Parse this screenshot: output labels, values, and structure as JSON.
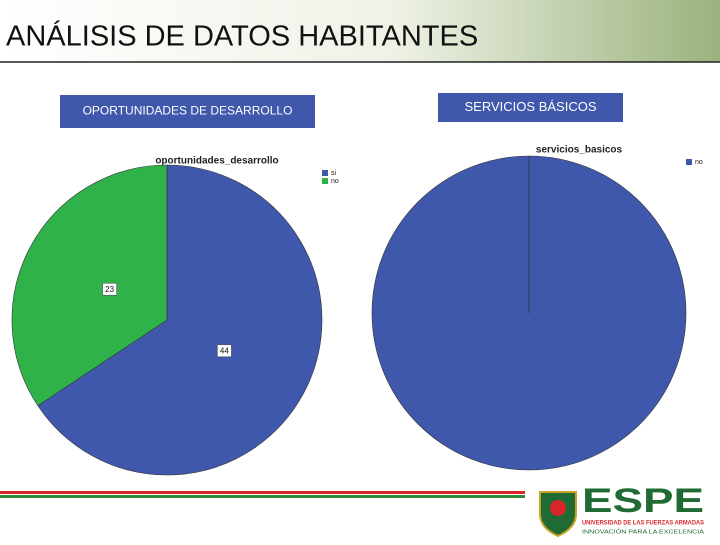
{
  "slide": {
    "title": "ANÁLISIS DE DATOS HABITANTES",
    "logo": {
      "name": "ESPE",
      "line1": "UNIVERSIDAD DE LAS FUERZAS ARMADAS",
      "line2": "INNOVACIÓN PARA LA EXCELENCIA"
    }
  },
  "chart_data": [
    {
      "type": "pie",
      "heading": "OPORTUNIDADES DE DESARROLLO",
      "title": "oportunidades_desarrollo",
      "categories": [
        "si",
        "no"
      ],
      "values": [
        44,
        23
      ],
      "colors": [
        "#3f58ab",
        "#2fb24a"
      ],
      "data_labels": true
    },
    {
      "type": "pie",
      "heading": "SERVICIOS BÁSICOS",
      "title": "servicios_basicos",
      "categories": [
        "no"
      ],
      "values": [
        67
      ],
      "colors": [
        "#3f58ab"
      ],
      "data_labels": false
    }
  ]
}
